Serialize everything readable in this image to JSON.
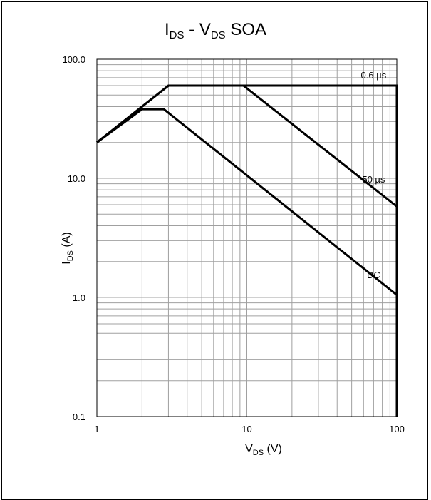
{
  "chart_data": {
    "type": "line",
    "title_parts": {
      "i": "I",
      "ds1": "DS",
      "mid": " - V",
      "ds2": "DS",
      "end": " SOA"
    },
    "xlabel_parts": {
      "v": "V",
      "ds": "DS",
      "unit": " (V)"
    },
    "ylabel_parts": {
      "i": "I",
      "ds": "DS",
      "unit": " (A)"
    },
    "x_scale": "log",
    "y_scale": "log",
    "xlim": [
      1,
      100
    ],
    "ylim": [
      0.1,
      100
    ],
    "x_ticks": [
      "1",
      "10",
      "100"
    ],
    "y_ticks": [
      "100.0",
      "10.0",
      "1.0",
      "0.1"
    ],
    "grid": true,
    "series": [
      {
        "name": "0.6 µs",
        "x": [
          1,
          3,
          100,
          100
        ],
        "y": [
          20,
          60,
          60,
          0.1
        ]
      },
      {
        "name": "50 µs",
        "x": [
          1,
          3,
          9.5,
          100
        ],
        "y": [
          20,
          60,
          60,
          5.8
        ]
      },
      {
        "name": "DC",
        "x": [
          1,
          2,
          2.8,
          100
        ],
        "y": [
          20,
          38,
          38,
          1.05
        ]
      }
    ]
  }
}
